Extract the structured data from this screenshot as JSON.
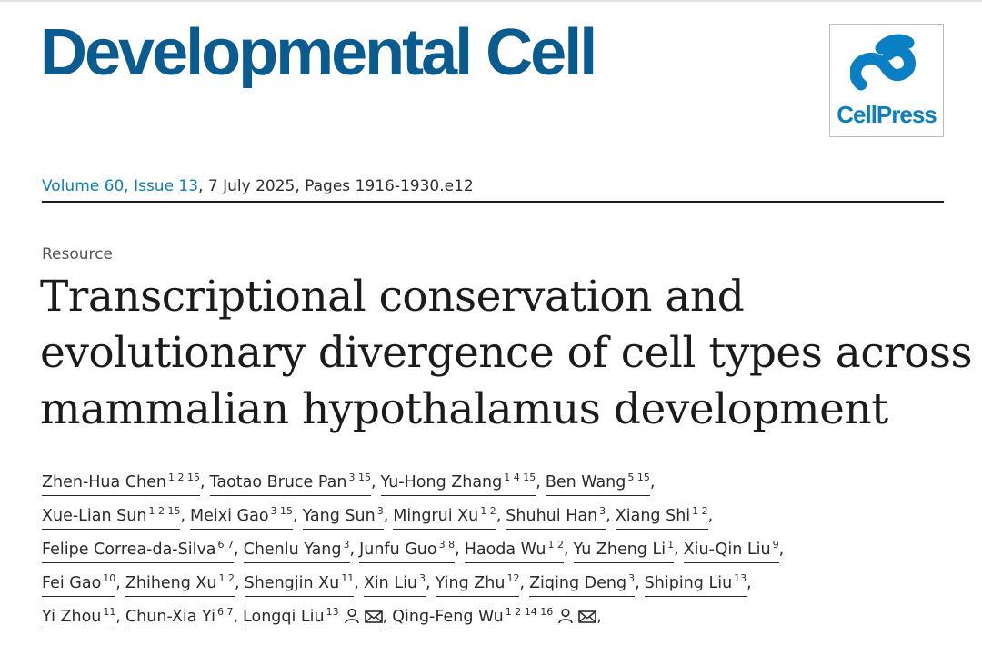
{
  "journal": {
    "title": "Developmental Cell",
    "publisher_logo_text": "CellPress",
    "icon": "cellpress-logo-icon"
  },
  "issue": {
    "volume_issue": "Volume 60, Issue 13",
    "rest": ", 7 July 2025, Pages 1916-1930.e12"
  },
  "article": {
    "type": "Resource",
    "title_lines": [
      "Transcriptional conservation and",
      "evolutionary divergence of cell types across",
      "mammalian hypothalamus development"
    ]
  },
  "icons": {
    "person": "person-icon",
    "email": "envelope-icon"
  },
  "authors": [
    [
      {
        "name": "Zhen-Hua Chen",
        "sup": "1 2 15"
      },
      {
        "name": "Taotao Bruce Pan",
        "sup": "3 15"
      },
      {
        "name": "Yu-Hong Zhang",
        "sup": "1 4 15"
      },
      {
        "name": "Ben Wang",
        "sup": "5 15"
      }
    ],
    [
      {
        "name": "Xue-Lian Sun",
        "sup": "1 2 15"
      },
      {
        "name": "Meixi Gao",
        "sup": "3 15"
      },
      {
        "name": "Yang Sun",
        "sup": "3"
      },
      {
        "name": "Mingrui Xu",
        "sup": "1 2"
      },
      {
        "name": "Shuhui Han",
        "sup": "3"
      },
      {
        "name": "Xiang Shi",
        "sup": "1 2"
      }
    ],
    [
      {
        "name": "Felipe Correa-da-Silva",
        "sup": "6 7"
      },
      {
        "name": "Chenlu Yang",
        "sup": "3"
      },
      {
        "name": "Junfu Guo",
        "sup": "3 8"
      },
      {
        "name": "Haoda Wu",
        "sup": "1 2"
      },
      {
        "name": "Yu Zheng Li",
        "sup": "1"
      },
      {
        "name": "Xiu-Qin Liu",
        "sup": "9"
      }
    ],
    [
      {
        "name": "Fei Gao",
        "sup": "10"
      },
      {
        "name": "Zhiheng Xu",
        "sup": "1 2"
      },
      {
        "name": "Shengjin Xu",
        "sup": "11"
      },
      {
        "name": "Xin Liu",
        "sup": "3"
      },
      {
        "name": "Ying Zhu",
        "sup": "12"
      },
      {
        "name": "Ziqing Deng",
        "sup": "3"
      },
      {
        "name": "Shiping Liu",
        "sup": "13"
      }
    ],
    [
      {
        "name": "Yi Zhou",
        "sup": "11"
      },
      {
        "name": "Chun-Xia Yi",
        "sup": "6 7"
      },
      {
        "name": "Longqi Liu",
        "sup": "13",
        "corresponding": true
      },
      {
        "name": "Qing-Feng Wu",
        "sup": "1 2 14 16",
        "corresponding": true
      }
    ]
  ]
}
